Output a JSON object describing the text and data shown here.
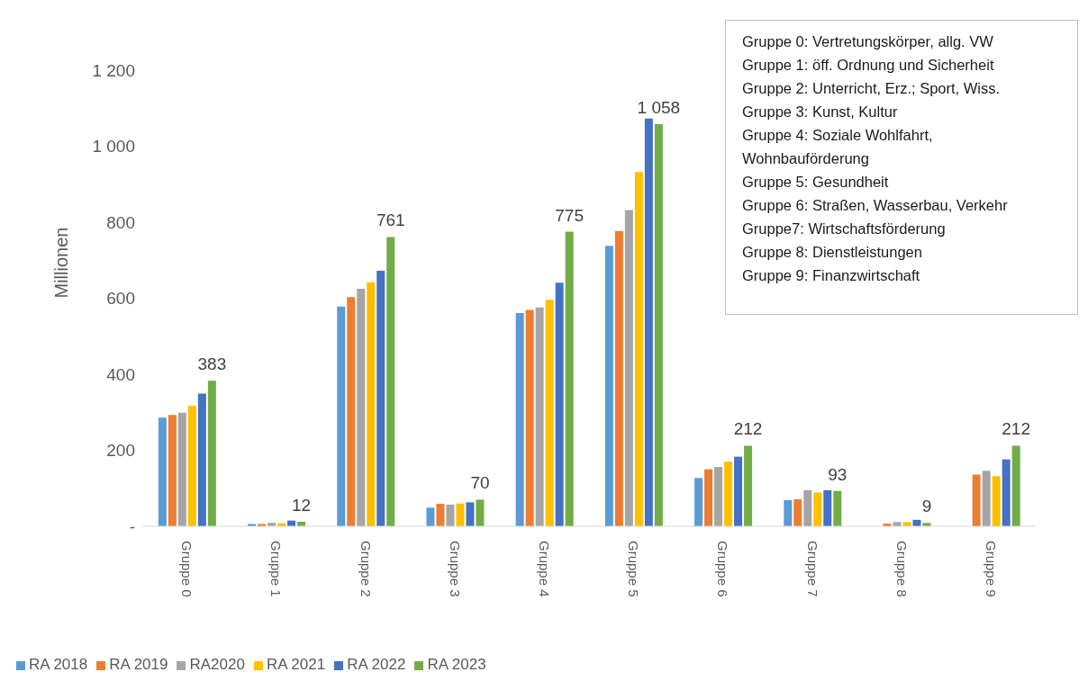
{
  "chart_data": {
    "type": "bar",
    "ylabel": "Millionen",
    "categories": [
      "Gruppe 0",
      "Gruppe 1",
      "Gruppe 2",
      "Gruppe 3",
      "Gruppe 4",
      "Gruppe 5",
      "Gruppe 6",
      "Gruppe 7",
      "Gruppe 8",
      "Gruppe 9"
    ],
    "series": [
      {
        "name": "RA 2018",
        "color": "#5b9bd5",
        "values": [
          286,
          6,
          578,
          49,
          561,
          738,
          127,
          69,
          null,
          null
        ]
      },
      {
        "name": "RA 2019",
        "color": "#ed7d31",
        "values": [
          293,
          6,
          603,
          59,
          569,
          777,
          150,
          71,
          7,
          136
        ]
      },
      {
        "name": "RA2020",
        "color": "#a5a5a5",
        "values": [
          299,
          9,
          625,
          57,
          576,
          832,
          156,
          95,
          11,
          146
        ]
      },
      {
        "name": "RA 2021",
        "color": "#ffc000",
        "values": [
          317,
          8,
          642,
          60,
          596,
          932,
          170,
          89,
          11,
          132
        ]
      },
      {
        "name": "RA 2022",
        "color": "#4472c4",
        "values": [
          349,
          15,
          672,
          63,
          641,
          1073,
          183,
          95,
          17,
          176
        ]
      },
      {
        "name": "RA 2023",
        "color": "#70ad47",
        "values": [
          383,
          12,
          761,
          70,
          775,
          1058,
          212,
          93,
          9,
          212
        ],
        "value_labels": [
          "383",
          "12",
          "761",
          "70",
          "775",
          "1 058",
          "212",
          "93",
          "9",
          "212"
        ]
      }
    ],
    "ylim": [
      0,
      1200
    ],
    "yticks": [
      {
        "value": 0,
        "label": "-"
      },
      200,
      400,
      600,
      800,
      {
        "value": 1000,
        "label": "1 000"
      },
      {
        "value": 1200,
        "label": "1 200"
      }
    ],
    "grid": false,
    "legend": "bottom left",
    "annotations": [
      "Gruppe 0: Vertretungskörper, allg. VW",
      "Gruppe 1: öff. Ordnung und Sicherheit",
      "Gruppe 2: Unterricht, Erz.; Sport, Wiss.",
      "Gruppe 3: Kunst, Kultur",
      "Gruppe 4: Soziale Wohlfahrt,",
      "Wohnbauförderung",
      "Gruppe 5: Gesundheit",
      "Gruppe 6: Straßen, Wasserbau, Verkehr",
      "Gruppe7: Wirtschaftsförderung",
      "Gruppe 8: Dienstleistungen",
      "Gruppe 9: Finanzwirtschaft"
    ]
  }
}
